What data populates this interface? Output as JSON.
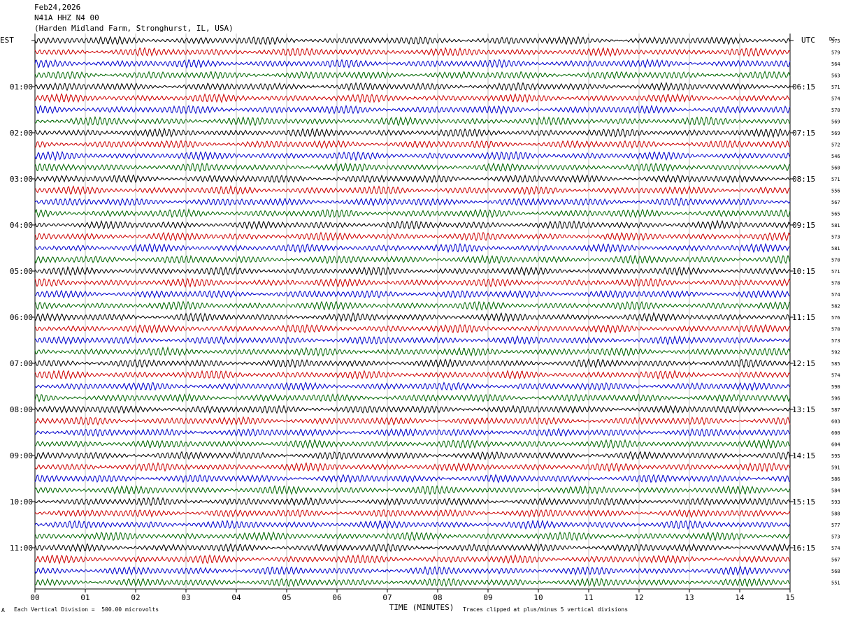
{
  "header": {
    "date": "Feb24,2026",
    "station": "N41A HHZ N4 00",
    "location": "(Harden Midland Farm, Stronghurst, IL, USA)"
  },
  "axes": {
    "left_zone": "EST",
    "right_zone": "UTC",
    "dc_label": "DC",
    "xlabel": "TIME (MINUTES)"
  },
  "footer": {
    "marker": "A",
    "scale_note": "Each Vertical Division =  500.00 microvolts",
    "clip_note": "Traces clipped at plus/minus 5 vertical divisions"
  },
  "colors": {
    "trace_cycle": [
      "#000000",
      "#cc0000",
      "#0000cc",
      "#006600"
    ],
    "grid": "#c0c0c0",
    "axis": "#000000"
  },
  "chart_data": {
    "type": "line",
    "subtype": "helicorder",
    "title": "",
    "xlabel": "TIME (MINUTES)",
    "x_ticks": [
      "00",
      "01",
      "02",
      "03",
      "04",
      "05",
      "06",
      "07",
      "08",
      "09",
      "10",
      "11",
      "12",
      "13",
      "14",
      "15"
    ],
    "xlim": [
      0,
      15
    ],
    "traces_per_hour": 4,
    "est_hour_labels": [
      "01:00",
      "02:00",
      "03:00",
      "04:00",
      "05:00",
      "06:00",
      "07:00",
      "08:00",
      "09:00",
      "10:00",
      "11:00"
    ],
    "utc_hour_labels": [
      "06:15",
      "07:15",
      "08:15",
      "09:15",
      "10:15",
      "11:15",
      "12:15",
      "13:15",
      "14:15",
      "15:15",
      "16:15"
    ],
    "dc_values": [
      "575",
      "579",
      "564",
      "563",
      "571",
      "574",
      "570",
      "569",
      "569",
      "572",
      "546",
      "560",
      "571",
      "556",
      "567",
      "565",
      "581",
      "573",
      "581",
      "570",
      "571",
      "578",
      "574",
      "582",
      "576",
      "570",
      "573",
      "592",
      "585",
      "574",
      "590",
      "596",
      "587",
      "603",
      "600",
      "604",
      "595",
      "591",
      "586",
      "584",
      "593",
      "588",
      "577",
      "573",
      "574",
      "567",
      "568",
      "551"
    ]
  }
}
